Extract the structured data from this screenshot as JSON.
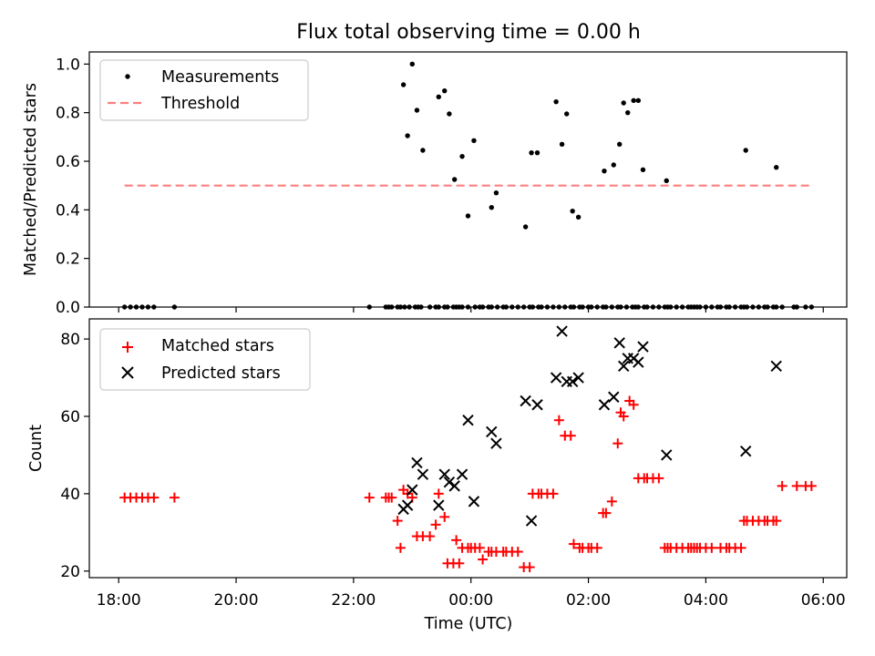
{
  "title": "Flux total observing time = 0.00 h",
  "chart_data": [
    {
      "type": "scatter",
      "ylabel": "Matched/Predicted stars",
      "ylim": [
        0,
        1.05
      ],
      "yticks": [
        0.0,
        0.2,
        0.4,
        0.6,
        0.8,
        1.0
      ],
      "ytick_labels": [
        "0.0",
        "0.2",
        "0.4",
        "0.6",
        "0.8",
        "1.0"
      ],
      "xlim": [
        17.5,
        30.4
      ],
      "xticks": [
        18,
        20,
        22,
        24,
        26,
        28,
        30
      ],
      "xtick_labels": [
        "18:00",
        "20:00",
        "22:00",
        "00:00",
        "02:00",
        "04:00",
        "06:00"
      ],
      "legend_position": "upper-left",
      "threshold": {
        "name": "Threshold",
        "value": 0.5,
        "x_range": [
          18.1,
          29.8
        ],
        "color": "#ff7f7f"
      },
      "series": [
        {
          "name": "Measurements",
          "color": "#000000",
          "x": [
            18.1,
            18.2,
            18.3,
            18.4,
            18.5,
            18.6,
            18.95,
            22.27,
            22.55,
            22.6,
            22.65,
            22.75,
            22.8,
            22.87,
            22.95,
            23.05,
            23.1,
            23.15,
            23.3,
            23.4,
            23.45,
            23.55,
            23.6,
            23.7,
            23.75,
            23.8,
            23.85,
            23.95,
            24.07,
            24.15,
            24.2,
            24.3,
            24.35,
            24.45,
            24.55,
            24.6,
            24.7,
            24.8,
            24.9,
            25.0,
            25.05,
            25.15,
            25.2,
            25.3,
            25.4,
            25.5,
            25.6,
            25.7,
            25.75,
            25.85,
            25.9,
            26.0,
            26.05,
            26.15,
            26.25,
            26.3,
            26.4,
            26.5,
            26.55,
            26.65,
            26.75,
            26.8,
            26.85,
            26.95,
            27.0,
            27.1,
            27.2,
            27.3,
            27.35,
            27.4,
            27.5,
            27.6,
            27.7,
            27.75,
            27.8,
            27.85,
            27.9,
            28.0,
            28.1,
            28.2,
            28.25,
            28.35,
            28.4,
            28.5,
            28.6,
            28.65,
            28.7,
            28.8,
            28.9,
            29.0,
            29.05,
            29.15,
            29.2,
            29.3,
            29.5,
            29.55,
            29.7,
            29.8,
            22.85,
            22.92,
            23.0,
            23.08,
            23.18,
            23.45,
            23.55,
            23.63,
            23.72,
            23.85,
            23.95,
            24.05,
            24.35,
            24.43,
            24.93,
            25.03,
            25.13,
            25.45,
            25.55,
            25.63,
            25.73,
            25.83,
            26.27,
            26.43,
            26.53,
            26.6,
            26.67,
            26.77,
            26.85,
            26.93,
            27.33,
            28.68,
            29.2
          ],
          "y": [
            0,
            0,
            0,
            0,
            0,
            0,
            0,
            0,
            0,
            0,
            0,
            0,
            0,
            0,
            0,
            0,
            0,
            0,
            0,
            0,
            0,
            0,
            0,
            0,
            0,
            0,
            0,
            0,
            0,
            0,
            0,
            0,
            0,
            0,
            0,
            0,
            0,
            0,
            0,
            0,
            0,
            0,
            0,
            0,
            0,
            0,
            0,
            0,
            0,
            0,
            0,
            0,
            0,
            0,
            0,
            0,
            0,
            0,
            0,
            0,
            0,
            0,
            0,
            0,
            0,
            0,
            0,
            0,
            0,
            0,
            0,
            0,
            0,
            0,
            0,
            0,
            0,
            0,
            0,
            0,
            0,
            0,
            0,
            0,
            0,
            0,
            0,
            0,
            0,
            0,
            0,
            0,
            0,
            0,
            0,
            0,
            0,
            0,
            0.915,
            0.705,
            1.0,
            0.81,
            0.645,
            0.865,
            0.89,
            0.795,
            0.525,
            0.62,
            0.375,
            0.685,
            0.41,
            0.47,
            0.33,
            0.635,
            0.635,
            0.845,
            0.67,
            0.795,
            0.395,
            0.37,
            0.56,
            0.585,
            0.67,
            0.84,
            0.8,
            0.85,
            0.85,
            0.565,
            0.52,
            0.645,
            0.575
          ]
        }
      ]
    },
    {
      "type": "scatter",
      "xlabel": "Time (UTC)",
      "ylabel": "Count",
      "ylim": [
        18.3,
        85.2
      ],
      "yticks": [
        20,
        40,
        60,
        80
      ],
      "ytick_labels": [
        "20",
        "40",
        "60",
        "80"
      ],
      "xlim": [
        17.5,
        30.4
      ],
      "xticks": [
        18,
        20,
        22,
        24,
        26,
        28,
        30
      ],
      "xtick_labels": [
        "18:00",
        "20:00",
        "22:00",
        "00:00",
        "02:00",
        "04:00",
        "06:00"
      ],
      "legend_position": "upper-left",
      "series": [
        {
          "name": "Matched stars",
          "marker": "plus",
          "color": "#ff0000",
          "x": [
            18.1,
            18.2,
            18.3,
            18.4,
            18.5,
            18.6,
            18.95,
            22.27,
            22.55,
            22.6,
            22.65,
            22.75,
            22.8,
            22.85,
            22.92,
            23.0,
            23.08,
            23.18,
            23.3,
            23.4,
            23.45,
            23.55,
            23.6,
            23.7,
            23.75,
            23.8,
            23.85,
            23.95,
            24.0,
            24.07,
            24.15,
            24.2,
            24.3,
            24.35,
            24.43,
            24.55,
            24.6,
            24.7,
            24.8,
            24.9,
            25.0,
            25.05,
            25.15,
            25.2,
            25.3,
            25.4,
            25.5,
            25.6,
            25.7,
            25.75,
            25.85,
            25.9,
            26.0,
            26.05,
            26.15,
            26.25,
            26.3,
            26.4,
            26.5,
            26.55,
            26.6,
            26.7,
            26.77,
            26.85,
            26.95,
            27.0,
            27.1,
            27.2,
            27.3,
            27.35,
            27.4,
            27.5,
            27.6,
            27.7,
            27.75,
            27.8,
            27.85,
            27.9,
            28.0,
            28.1,
            28.25,
            28.35,
            28.4,
            28.5,
            28.6,
            28.65,
            28.7,
            28.8,
            28.9,
            29.0,
            29.05,
            29.15,
            29.2,
            29.3,
            29.55,
            29.7,
            29.8
          ],
          "y": [
            39,
            39,
            39,
            39,
            39,
            39,
            39,
            39,
            39,
            39,
            39,
            33,
            26,
            41,
            40,
            39,
            29,
            29,
            29,
            32,
            40,
            34,
            22,
            22,
            28,
            22,
            26,
            26,
            26,
            26,
            26,
            23,
            25,
            25,
            25,
            25,
            25,
            25,
            25,
            21,
            21,
            40,
            40,
            40,
            40,
            40,
            59,
            55,
            55,
            27,
            26,
            26,
            26,
            26,
            26,
            35,
            35,
            38,
            53,
            61,
            60,
            64,
            63,
            44,
            44,
            44,
            44,
            44,
            26,
            26,
            26,
            26,
            26,
            26,
            26,
            26,
            26,
            26,
            26,
            26,
            26,
            26,
            26,
            26,
            26,
            33,
            33,
            33,
            33,
            33,
            33,
            33,
            33,
            42,
            42,
            42,
            42
          ]
        },
        {
          "name": "Predicted stars",
          "marker": "x",
          "color": "#000000",
          "x": [
            22.85,
            22.92,
            23.0,
            23.08,
            23.18,
            23.45,
            23.55,
            23.63,
            23.72,
            23.85,
            23.95,
            24.05,
            24.35,
            24.43,
            24.93,
            25.03,
            25.13,
            25.45,
            25.55,
            25.63,
            25.73,
            25.83,
            26.27,
            26.43,
            26.53,
            26.6,
            26.67,
            26.77,
            26.85,
            26.93,
            27.33,
            28.68,
            29.2
          ],
          "y": [
            36,
            37,
            41,
            48,
            45,
            37,
            45,
            43,
            42,
            45,
            59,
            38,
            56,
            53,
            64,
            33,
            63,
            70,
            82,
            69,
            69,
            70,
            63,
            65,
            79,
            73,
            75,
            75,
            74,
            78,
            50,
            51,
            73
          ]
        }
      ]
    }
  ]
}
